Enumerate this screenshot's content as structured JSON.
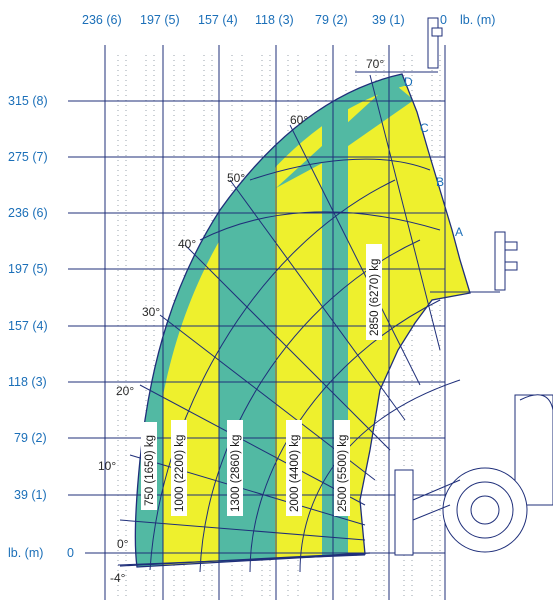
{
  "axes": {
    "top_labels": [
      "236 (6)",
      "197 (5)",
      "157 (4)",
      "118 (3)",
      "79 (2)",
      "39 (1)",
      "0"
    ],
    "top_unit": "lb. (m)",
    "left_labels": [
      "315 (8)",
      "275 (7)",
      "236 (6)",
      "197 (5)",
      "157 (4)",
      "118 (3)",
      "79 (2)",
      "39 (1)"
    ],
    "left_unit": "lb. (m)",
    "left_zero": "0"
  },
  "angles": [
    "70°",
    "60°",
    "50°",
    "40°",
    "30°",
    "20°",
    "10°",
    "0°",
    "-4°"
  ],
  "extensions": [
    "A",
    "B",
    "C",
    "D"
  ],
  "zones": [
    "750 (1650) kg",
    "1000 (2200) kg",
    "1300 (2860) kg",
    "2000 (4400) kg",
    "2500 (5500) kg",
    "2850 (6270) kg"
  ],
  "colors": {
    "teal": "#52b9a3",
    "yellow": "#eef02d",
    "line": "#1f2f7a",
    "label": "#1b6fb8"
  }
}
